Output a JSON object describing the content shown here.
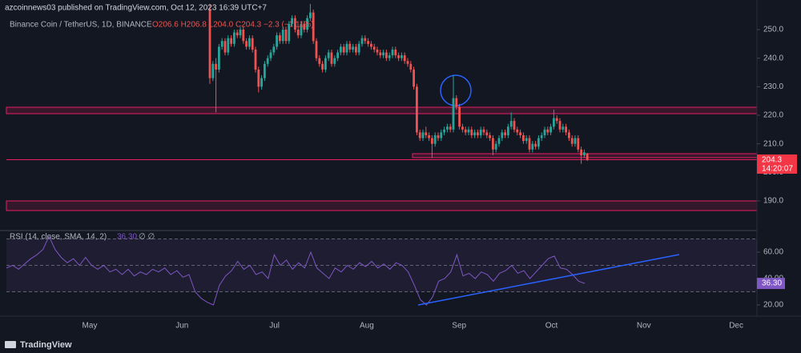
{
  "header": "azcoinnews03 published on TradingView.com, Oct 12, 2023 16:39 UTC+7",
  "footer": "TradingView",
  "chart_data": {
    "type": "candlestick",
    "title": "Binance Coin / TetherUS, 1D, BINANCE",
    "quote_text": "O206.6 H206.8 L204.0 C204.3 −2.3 (−1.11%)",
    "countdown": "14:20:07",
    "up_color": "#26a69a",
    "down_color": "#ef5350",
    "ylim": [
      180.47,
      260.37
    ],
    "yticks": [
      {
        "value": 190,
        "label": "190.0"
      },
      {
        "value": 200,
        "label": "200.0"
      },
      {
        "value": 210,
        "label": "210.0"
      },
      {
        "value": 220,
        "label": "220.0"
      },
      {
        "value": 230,
        "label": "230.0"
      },
      {
        "value": 240,
        "label": "240.0"
      },
      {
        "value": 250,
        "label": "250.0"
      }
    ],
    "months": [
      "May",
      "Jun",
      "Jul",
      "Aug",
      "Sep",
      "Oct",
      "Nov",
      "Dec"
    ],
    "candles": [
      [
        257,
        259,
        231,
        233
      ],
      [
        233,
        239,
        232,
        238
      ],
      [
        238,
        240,
        221,
        236
      ],
      [
        236,
        245,
        235,
        244
      ],
      [
        244,
        247,
        243,
        246
      ],
      [
        246,
        247,
        241,
        242
      ],
      [
        242,
        248,
        241,
        247
      ],
      [
        247,
        248,
        244,
        245
      ],
      [
        245,
        250,
        244,
        249
      ],
      [
        249,
        250,
        247,
        248
      ],
      [
        248,
        251,
        247,
        250
      ],
      [
        250,
        251,
        245,
        246
      ],
      [
        246,
        247,
        243,
        244
      ],
      [
        244,
        248,
        243,
        247
      ],
      [
        247,
        248,
        242,
        243
      ],
      [
        243,
        244,
        235,
        236
      ],
      [
        236,
        237,
        228,
        230
      ],
      [
        230,
        234,
        229,
        233
      ],
      [
        233,
        239,
        232,
        238
      ],
      [
        238,
        241,
        237,
        240
      ],
      [
        240,
        243,
        239,
        242
      ],
      [
        242,
        245,
        241,
        244
      ],
      [
        244,
        249,
        243,
        248
      ],
      [
        248,
        249,
        245,
        246
      ],
      [
        246,
        251,
        245,
        250
      ],
      [
        250,
        251,
        245,
        246
      ],
      [
        246,
        253,
        245,
        252
      ],
      [
        252,
        255,
        251,
        254
      ],
      [
        254,
        255,
        249,
        250
      ],
      [
        250,
        251,
        247,
        248
      ],
      [
        248,
        253,
        247,
        252
      ],
      [
        252,
        253,
        249,
        250
      ],
      [
        250,
        255,
        249,
        254
      ],
      [
        254,
        259,
        253,
        256
      ],
      [
        256,
        257,
        245,
        246
      ],
      [
        246,
        247,
        239,
        240
      ],
      [
        240,
        241,
        237,
        238
      ],
      [
        238,
        239,
        235,
        236
      ],
      [
        236,
        241,
        235,
        240
      ],
      [
        240,
        243,
        239,
        242
      ],
      [
        242,
        243,
        237,
        238
      ],
      [
        238,
        241,
        237,
        240
      ],
      [
        240,
        243,
        239,
        242
      ],
      [
        242,
        245,
        241,
        244
      ],
      [
        244,
        245,
        241,
        242
      ],
      [
        242,
        246,
        241,
        245
      ],
      [
        245,
        246,
        242,
        243
      ],
      [
        243,
        245,
        242,
        244
      ],
      [
        244,
        245,
        241,
        242
      ],
      [
        242,
        246,
        241,
        245
      ],
      [
        245,
        248,
        244,
        247
      ],
      [
        247,
        248,
        245,
        246
      ],
      [
        246,
        247,
        244,
        245
      ],
      [
        245,
        246,
        243,
        244
      ],
      [
        244,
        245,
        242,
        243
      ],
      [
        243,
        244,
        241,
        242
      ],
      [
        242,
        243,
        240,
        241
      ],
      [
        241,
        243,
        240,
        242
      ],
      [
        242,
        243,
        239,
        240
      ],
      [
        240,
        242,
        239,
        241
      ],
      [
        241,
        244,
        240,
        243
      ],
      [
        243,
        244,
        240,
        241
      ],
      [
        241,
        242,
        239,
        240
      ],
      [
        240,
        242,
        239,
        241
      ],
      [
        241,
        242,
        238,
        239
      ],
      [
        239,
        240,
        237,
        238
      ],
      [
        238,
        239,
        235,
        236
      ],
      [
        236,
        237,
        229,
        230
      ],
      [
        230,
        231,
        213,
        214
      ],
      [
        214,
        215,
        211,
        212
      ],
      [
        212,
        215,
        211,
        214
      ],
      [
        214,
        216,
        212,
        213
      ],
      [
        213,
        214,
        211,
        212
      ],
      [
        212,
        213,
        205,
        210
      ],
      [
        210,
        214,
        209,
        213
      ],
      [
        213,
        214,
        211,
        212
      ],
      [
        212,
        215,
        211,
        214
      ],
      [
        214,
        216,
        213,
        215
      ],
      [
        215,
        217,
        214,
        216
      ],
      [
        216,
        217,
        214,
        215
      ],
      [
        215,
        234,
        214,
        226
      ],
      [
        226,
        227,
        222,
        223
      ],
      [
        223,
        224,
        215,
        216
      ],
      [
        216,
        217,
        214,
        215
      ],
      [
        215,
        216,
        213,
        214
      ],
      [
        214,
        216,
        213,
        215
      ],
      [
        215,
        216,
        212,
        213
      ],
      [
        213,
        215,
        212,
        214
      ],
      [
        214,
        215,
        212,
        213
      ],
      [
        213,
        216,
        212,
        215
      ],
      [
        215,
        216,
        213,
        214
      ],
      [
        214,
        215,
        212,
        213
      ],
      [
        213,
        214,
        211,
        212
      ],
      [
        212,
        213,
        206,
        208
      ],
      [
        208,
        211,
        207,
        210
      ],
      [
        210,
        213,
        209,
        212
      ],
      [
        212,
        215,
        211,
        214
      ],
      [
        214,
        215,
        212,
        213
      ],
      [
        213,
        217,
        212,
        216
      ],
      [
        216,
        221,
        215,
        218
      ],
      [
        218,
        219,
        214,
        215
      ],
      [
        215,
        216,
        213,
        214
      ],
      [
        214,
        215,
        212,
        213
      ],
      [
        213,
        214,
        210,
        211
      ],
      [
        211,
        213,
        210,
        212
      ],
      [
        212,
        213,
        207,
        208
      ],
      [
        208,
        211,
        207,
        210
      ],
      [
        210,
        211,
        208,
        209
      ],
      [
        209,
        213,
        208,
        212
      ],
      [
        212,
        214,
        211,
        213
      ],
      [
        213,
        216,
        212,
        215
      ],
      [
        215,
        216,
        213,
        214
      ],
      [
        214,
        217,
        213,
        216
      ],
      [
        216,
        222,
        215,
        219
      ],
      [
        219,
        220,
        217,
        218
      ],
      [
        218,
        219,
        214,
        215
      ],
      [
        215,
        217,
        214,
        216
      ],
      [
        216,
        217,
        213,
        214
      ],
      [
        214,
        215,
        211,
        212
      ],
      [
        212,
        213,
        209,
        210
      ],
      [
        210,
        213,
        209,
        212
      ],
      [
        212,
        213,
        207,
        208
      ],
      [
        208,
        209,
        203,
        206
      ],
      [
        206,
        208,
        205,
        207
      ],
      [
        206.6,
        206.8,
        204.0,
        204.3
      ]
    ],
    "rsi": {
      "title": "RSI (14, close, SMA, 14, 2)",
      "value_label": "36.30",
      "extra": "∅ ∅",
      "color": "#7e57c2",
      "ylim": [
        11.5,
        75.15
      ],
      "yticks": [
        {
          "value": 20,
          "label": "20.00"
        },
        {
          "value": 40,
          "label": "40.00"
        },
        {
          "value": 60,
          "label": "60.00"
        }
      ],
      "levels": [
        70,
        50,
        30
      ],
      "values": [
        48,
        50,
        47,
        51,
        55,
        58,
        62,
        72,
        62,
        56,
        52,
        55,
        50,
        56,
        50,
        47,
        50,
        45,
        47,
        43,
        47,
        42,
        45,
        43,
        47,
        45,
        48,
        43,
        46,
        41,
        43,
        30,
        25,
        22,
        20,
        35,
        42,
        46,
        53,
        47,
        50,
        43,
        45,
        40,
        58,
        50,
        54,
        47,
        52,
        48,
        60,
        48,
        44,
        40,
        48,
        45,
        50,
        47,
        52,
        49,
        53,
        48,
        51,
        47,
        52,
        50,
        45,
        35,
        24,
        20,
        26,
        38,
        40,
        45,
        58,
        42,
        44,
        40,
        45,
        43,
        38,
        44,
        46,
        50,
        44,
        46,
        40,
        45,
        50,
        55,
        57,
        48,
        47,
        43,
        38,
        36.3
      ]
    }
  }
}
